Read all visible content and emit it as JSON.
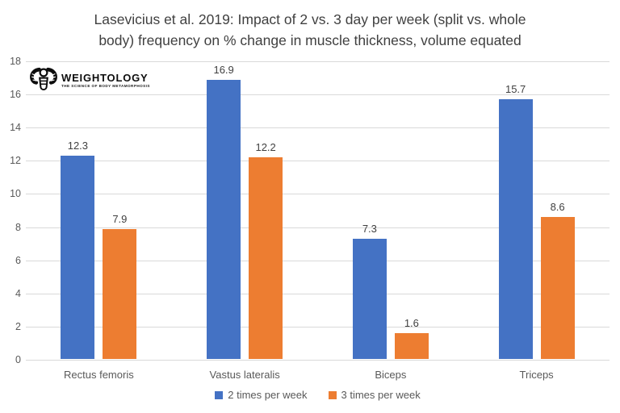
{
  "header": {
    "line1": "Lasevicius et al. 2019: Impact of 2 vs. 3 day per week (split vs. whole",
    "line2": "body) frequency on % change in muscle thickness, volume equated"
  },
  "logo": {
    "icon": "flexing-figure-icon",
    "brand": "WEIGHTOLOGY",
    "tagline": "THE SCIENCE OF BODY METAMORPHOSIS"
  },
  "chart_data": {
    "type": "bar",
    "title": "Lasevicius et al. 2019: Impact of 2 vs. 3 day per week (split vs. whole body) frequency on % change in muscle thickness, volume equated",
    "categories": [
      "Rectus femoris",
      "Vastus lateralis",
      "Biceps",
      "Triceps"
    ],
    "series": [
      {
        "name": "2 times per week",
        "color": "#4472C4",
        "values": [
          12.3,
          16.9,
          7.3,
          15.7
        ]
      },
      {
        "name": "3 times per week",
        "color": "#ED7D31",
        "values": [
          7.9,
          12.2,
          1.6,
          8.6
        ]
      }
    ],
    "xlabel": "",
    "ylabel": "",
    "ylim": [
      0,
      18
    ],
    "yticks": [
      0,
      2,
      4,
      6,
      8,
      10,
      12,
      14,
      16,
      18
    ],
    "grid": true,
    "data_labels": true,
    "legend_position": "bottom",
    "colors": {
      "background": "#ffffff",
      "gridline": "#d9d9d9",
      "axis_text": "#595959",
      "data_label_text": "#404040",
      "title_text": "#404040"
    }
  }
}
